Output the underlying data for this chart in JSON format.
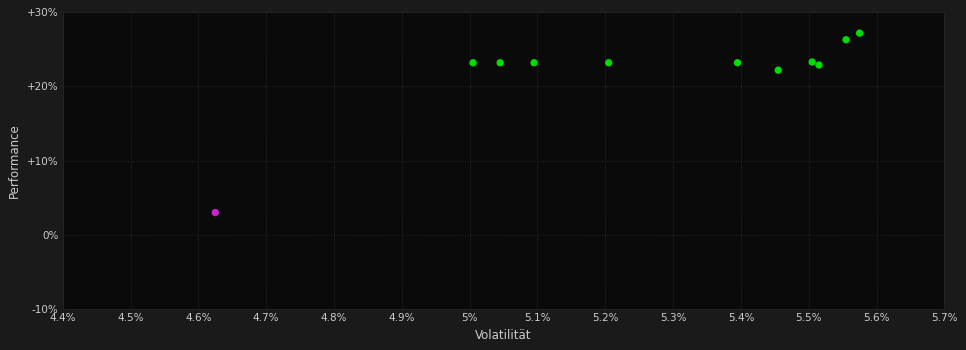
{
  "background_color": "#1a1a1a",
  "plot_bg_color": "#0a0a0a",
  "grid_color": "#2a2a2a",
  "text_color": "#cccccc",
  "xlabel": "Volatilität",
  "ylabel": "Performance",
  "xlim": [
    0.044,
    0.057
  ],
  "ylim": [
    -0.1,
    0.3
  ],
  "xticks": [
    0.044,
    0.045,
    0.046,
    0.047,
    0.048,
    0.049,
    0.05,
    0.051,
    0.052,
    0.053,
    0.054,
    0.055,
    0.056,
    0.057
  ],
  "yticks": [
    -0.1,
    0.0,
    0.1,
    0.2,
    0.3
  ],
  "ytick_labels": [
    "-10%",
    "0%",
    "+10%",
    "+20%",
    "+30%"
  ],
  "xtick_labels": [
    "4.4%",
    "4.5%",
    "4.6%",
    "4.7%",
    "4.8%",
    "4.9%",
    "5%",
    "5.1%",
    "5.2%",
    "5.3%",
    "5.4%",
    "5.5%",
    "5.6%",
    "5.7%"
  ],
  "green_points": [
    [
      0.05005,
      0.232
    ],
    [
      0.05045,
      0.232
    ],
    [
      0.05095,
      0.232
    ],
    [
      0.05205,
      0.232
    ],
    [
      0.05395,
      0.232
    ],
    [
      0.05455,
      0.222
    ],
    [
      0.05505,
      0.233
    ],
    [
      0.05515,
      0.229
    ],
    [
      0.05555,
      0.263
    ],
    [
      0.05575,
      0.272
    ]
  ],
  "magenta_points": [
    [
      0.04625,
      0.03
    ]
  ],
  "green_color": "#00dd00",
  "magenta_color": "#cc22cc",
  "marker_size": 28
}
